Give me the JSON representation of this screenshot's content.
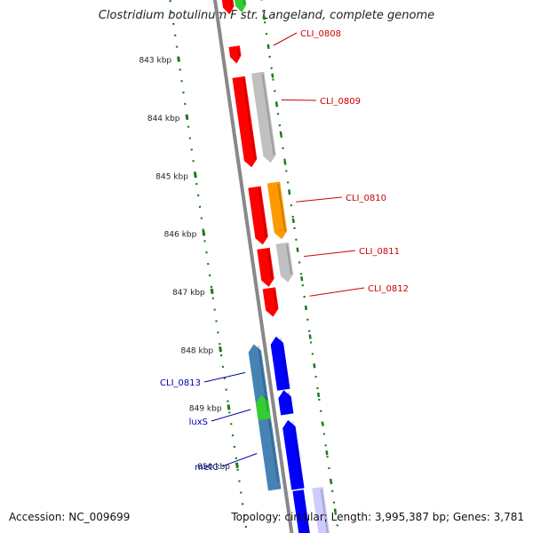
{
  "title": "Clostridium botulinum F str. Langeland, complete genome",
  "footer": {
    "accession": "Accession: NC_009699",
    "summary": "Topology: circular; Length: 3,995,387 bp; Genes: 3,781"
  },
  "ruler": {
    "ticks": [
      "843 kbp",
      "844 kbp",
      "845 kbp",
      "846 kbp",
      "847 kbp",
      "848 kbp",
      "849 kbp",
      "850 kbp"
    ]
  },
  "colors": {
    "red": "#ff0000",
    "gray": "#c0c0c0",
    "orange": "#ff9900",
    "blue": "#0000ff",
    "steelblue": "#4682b4",
    "green": "#33cc33",
    "backbone": "#888888",
    "ruler": "#1a7a1a",
    "labelRed": "#cc0000",
    "labelBlue": "#0000aa"
  },
  "genes": [
    {
      "name": "CLI_0808",
      "color": "red",
      "strand": "+",
      "labelled": true,
      "label_color": "labelRed"
    },
    {
      "name": "CLI_0809",
      "color": "gray",
      "strand": "+",
      "labelled": true,
      "label_color": "labelRed"
    },
    {
      "name": "CLI_0810",
      "color": "orange",
      "strand": "+",
      "labelled": true,
      "label_color": "labelRed"
    },
    {
      "name": "CLI_0811",
      "color": "gray",
      "strand": "+",
      "labelled": true,
      "label_color": "labelRed"
    },
    {
      "name": "CLI_0812",
      "color": "red",
      "strand": "+",
      "labelled": true,
      "label_color": "labelRed"
    },
    {
      "name": "CLI_0813",
      "color": "steelblue",
      "strand": "-",
      "labelled": true,
      "label_color": "labelBlue"
    },
    {
      "name": "luxS",
      "color": "green",
      "strand": "-",
      "labelled": true,
      "label_color": "labelBlue"
    },
    {
      "name": "metC",
      "color": "steelblue",
      "strand": "-",
      "labelled": true,
      "label_color": "labelBlue"
    }
  ]
}
